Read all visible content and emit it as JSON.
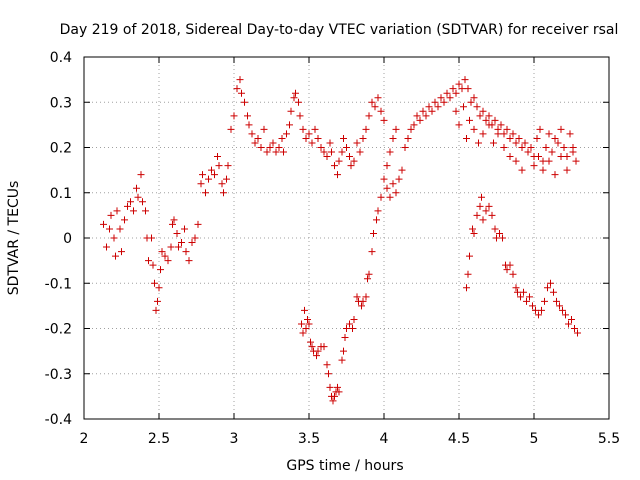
{
  "chart_data": {
    "type": "scatter",
    "title": "Day 219 of 2018, Sidereal Day-to-day VTEC variation (SDTVAR) for receiver rsal",
    "xlabel": "GPS time / hours",
    "ylabel": "SDTVAR / TECUs",
    "xlim": [
      2,
      5.5
    ],
    "ylim": [
      -0.4,
      0.4
    ],
    "xticks": [
      "2",
      "2.5",
      "3",
      "3.5",
      "4",
      "4.5",
      "5",
      "5.5"
    ],
    "yticks": [
      "0.4",
      "0.3",
      "0.2",
      "0.1",
      "0",
      "-0.1",
      "-0.2",
      "-0.3",
      "-0.4"
    ],
    "grid": true,
    "marker": "+",
    "color": "#cc0000",
    "series": [
      {
        "name": "SDTVAR",
        "points": [
          [
            2.13,
            0.03
          ],
          [
            2.15,
            -0.02
          ],
          [
            2.17,
            0.02
          ],
          [
            2.18,
            0.05
          ],
          [
            2.2,
            0.0
          ],
          [
            2.21,
            -0.04
          ],
          [
            2.22,
            0.06
          ],
          [
            2.24,
            0.02
          ],
          [
            2.25,
            -0.03
          ],
          [
            2.27,
            0.04
          ],
          [
            2.29,
            0.07
          ],
          [
            2.31,
            0.08
          ],
          [
            2.33,
            0.06
          ],
          [
            2.35,
            0.11
          ],
          [
            2.36,
            0.09
          ],
          [
            2.38,
            0.14
          ],
          [
            2.39,
            0.08
          ],
          [
            2.41,
            0.06
          ],
          [
            2.42,
            0.0
          ],
          [
            2.43,
            -0.05
          ],
          [
            2.45,
            0.0
          ],
          [
            2.46,
            -0.06
          ],
          [
            2.47,
            -0.1
          ],
          [
            2.48,
            -0.16
          ],
          [
            2.49,
            -0.14
          ],
          [
            2.5,
            -0.11
          ],
          [
            2.51,
            -0.07
          ],
          [
            2.52,
            -0.03
          ],
          [
            2.54,
            -0.04
          ],
          [
            2.56,
            -0.05
          ],
          [
            2.58,
            -0.02
          ],
          [
            2.59,
            0.03
          ],
          [
            2.6,
            0.04
          ],
          [
            2.62,
            0.01
          ],
          [
            2.63,
            -0.02
          ],
          [
            2.65,
            -0.01
          ],
          [
            2.67,
            0.02
          ],
          [
            2.68,
            -0.03
          ],
          [
            2.7,
            -0.05
          ],
          [
            2.72,
            -0.01
          ],
          [
            2.74,
            0.0
          ],
          [
            2.76,
            0.03
          ],
          [
            2.78,
            0.12
          ],
          [
            2.79,
            0.14
          ],
          [
            2.81,
            0.1
          ],
          [
            2.83,
            0.13
          ],
          [
            2.85,
            0.15
          ],
          [
            2.87,
            0.14
          ],
          [
            2.89,
            0.18
          ],
          [
            2.9,
            0.16
          ],
          [
            2.92,
            0.12
          ],
          [
            2.93,
            0.1
          ],
          [
            2.95,
            0.13
          ],
          [
            2.96,
            0.16
          ],
          [
            2.98,
            0.24
          ],
          [
            3.0,
            0.27
          ],
          [
            3.02,
            0.33
          ],
          [
            3.04,
            0.35
          ],
          [
            3.05,
            0.32
          ],
          [
            3.07,
            0.3
          ],
          [
            3.09,
            0.27
          ],
          [
            3.1,
            0.25
          ],
          [
            3.12,
            0.23
          ],
          [
            3.14,
            0.21
          ],
          [
            3.16,
            0.22
          ],
          [
            3.18,
            0.2
          ],
          [
            3.2,
            0.24
          ],
          [
            3.22,
            0.19
          ],
          [
            3.24,
            0.2
          ],
          [
            3.26,
            0.21
          ],
          [
            3.28,
            0.19
          ],
          [
            3.3,
            0.2
          ],
          [
            3.32,
            0.22
          ],
          [
            3.33,
            0.19
          ],
          [
            3.35,
            0.23
          ],
          [
            3.37,
            0.25
          ],
          [
            3.38,
            0.28
          ],
          [
            3.4,
            0.31
          ],
          [
            3.41,
            0.32
          ],
          [
            3.43,
            0.3
          ],
          [
            3.44,
            0.27
          ],
          [
            3.46,
            0.24
          ],
          [
            3.48,
            0.22
          ],
          [
            3.5,
            0.23
          ],
          [
            3.52,
            0.21
          ],
          [
            3.54,
            0.24
          ],
          [
            3.56,
            0.22
          ],
          [
            3.58,
            0.2
          ],
          [
            3.6,
            0.19
          ],
          [
            3.62,
            0.18
          ],
          [
            3.64,
            0.21
          ],
          [
            3.65,
            0.19
          ],
          [
            3.67,
            0.16
          ],
          [
            3.69,
            0.14
          ],
          [
            3.7,
            0.17
          ],
          [
            3.72,
            0.19
          ],
          [
            3.73,
            0.22
          ],
          [
            3.75,
            0.2
          ],
          [
            3.77,
            0.18
          ],
          [
            3.78,
            0.16
          ],
          [
            3.8,
            0.17
          ],
          [
            3.82,
            0.21
          ],
          [
            3.84,
            0.19
          ],
          [
            3.86,
            0.22
          ],
          [
            3.88,
            0.24
          ],
          [
            3.9,
            0.27
          ],
          [
            3.92,
            0.3
          ],
          [
            3.94,
            0.29
          ],
          [
            3.96,
            0.31
          ],
          [
            3.98,
            0.28
          ],
          [
            4.0,
            0.26
          ],
          [
            4.02,
            0.11
          ],
          [
            4.04,
            0.09
          ],
          [
            4.06,
            0.12
          ],
          [
            4.08,
            0.1
          ],
          [
            4.1,
            0.13
          ],
          [
            4.12,
            0.15
          ],
          [
            4.14,
            0.2
          ],
          [
            4.16,
            0.22
          ],
          [
            4.18,
            0.24
          ],
          [
            4.2,
            0.25
          ],
          [
            4.22,
            0.27
          ],
          [
            4.24,
            0.26
          ],
          [
            4.26,
            0.28
          ],
          [
            4.28,
            0.27
          ],
          [
            4.3,
            0.29
          ],
          [
            4.32,
            0.28
          ],
          [
            4.34,
            0.3
          ],
          [
            4.36,
            0.29
          ],
          [
            4.38,
            0.31
          ],
          [
            4.4,
            0.3
          ],
          [
            4.42,
            0.32
          ],
          [
            4.44,
            0.31
          ],
          [
            4.46,
            0.33
          ],
          [
            4.48,
            0.32
          ],
          [
            4.5,
            0.34
          ],
          [
            4.52,
            0.33
          ],
          [
            4.54,
            0.35
          ],
          [
            4.56,
            0.33
          ],
          [
            4.58,
            0.3
          ],
          [
            4.6,
            0.31
          ],
          [
            4.62,
            0.29
          ],
          [
            4.64,
            0.27
          ],
          [
            4.66,
            0.28
          ],
          [
            4.68,
            0.26
          ],
          [
            4.7,
            0.27
          ],
          [
            4.72,
            0.25
          ],
          [
            4.74,
            0.26
          ],
          [
            4.76,
            0.24
          ],
          [
            4.78,
            0.25
          ],
          [
            4.8,
            0.23
          ],
          [
            4.82,
            0.24
          ],
          [
            4.84,
            0.22
          ],
          [
            4.86,
            0.23
          ],
          [
            4.88,
            0.21
          ],
          [
            4.9,
            0.22
          ],
          [
            4.92,
            0.2
          ],
          [
            4.94,
            0.21
          ],
          [
            4.96,
            0.19
          ],
          [
            4.98,
            0.2
          ],
          [
            5.0,
            0.18
          ],
          [
            5.02,
            0.22
          ],
          [
            5.04,
            0.24
          ],
          [
            5.06,
            0.17
          ],
          [
            5.08,
            0.2
          ],
          [
            5.1,
            0.23
          ],
          [
            5.12,
            0.19
          ],
          [
            5.14,
            0.22
          ],
          [
            5.16,
            0.21
          ],
          [
            5.18,
            0.24
          ],
          [
            5.2,
            0.2
          ],
          [
            5.22,
            0.18
          ],
          [
            5.24,
            0.23
          ],
          [
            5.26,
            0.2
          ],
          [
            5.28,
            0.17
          ],
          [
            4.48,
            0.28
          ],
          [
            4.5,
            0.25
          ],
          [
            4.53,
            0.29
          ],
          [
            4.55,
            0.22
          ],
          [
            4.57,
            0.26
          ],
          [
            4.6,
            0.24
          ],
          [
            4.63,
            0.21
          ],
          [
            4.66,
            0.23
          ],
          [
            4.7,
            0.25
          ],
          [
            4.73,
            0.21
          ],
          [
            4.76,
            0.23
          ],
          [
            4.8,
            0.2
          ],
          [
            4.84,
            0.18
          ],
          [
            4.88,
            0.17
          ],
          [
            4.92,
            0.15
          ],
          [
            4.96,
            0.19
          ],
          [
            5.0,
            0.16
          ],
          [
            5.03,
            0.18
          ],
          [
            5.06,
            0.15
          ],
          [
            5.1,
            0.17
          ],
          [
            5.14,
            0.14
          ],
          [
            5.18,
            0.18
          ],
          [
            5.22,
            0.15
          ],
          [
            5.26,
            0.19
          ],
          [
            3.45,
            -0.19
          ],
          [
            3.46,
            -0.21
          ],
          [
            3.47,
            -0.16
          ],
          [
            3.48,
            -0.2
          ],
          [
            3.49,
            -0.18
          ],
          [
            3.5,
            -0.19
          ],
          [
            3.51,
            -0.23
          ],
          [
            3.52,
            -0.24
          ],
          [
            3.53,
            -0.25
          ],
          [
            3.55,
            -0.26
          ],
          [
            3.56,
            -0.25
          ],
          [
            3.58,
            -0.24
          ],
          [
            3.6,
            -0.24
          ],
          [
            3.62,
            -0.28
          ],
          [
            3.63,
            -0.3
          ],
          [
            3.64,
            -0.33
          ],
          [
            3.65,
            -0.35
          ],
          [
            3.66,
            -0.36
          ],
          [
            3.67,
            -0.35
          ],
          [
            3.68,
            -0.34
          ],
          [
            3.69,
            -0.33
          ],
          [
            3.7,
            -0.34
          ],
          [
            3.72,
            -0.27
          ],
          [
            3.73,
            -0.25
          ],
          [
            3.74,
            -0.22
          ],
          [
            3.75,
            -0.2
          ],
          [
            3.77,
            -0.19
          ],
          [
            3.79,
            -0.2
          ],
          [
            3.8,
            -0.18
          ],
          [
            3.82,
            -0.13
          ],
          [
            3.83,
            -0.14
          ],
          [
            3.85,
            -0.15
          ],
          [
            3.86,
            -0.14
          ],
          [
            3.88,
            -0.13
          ],
          [
            3.89,
            -0.09
          ],
          [
            3.9,
            -0.08
          ],
          [
            3.92,
            -0.03
          ],
          [
            3.93,
            0.01
          ],
          [
            3.95,
            0.04
          ],
          [
            3.96,
            0.06
          ],
          [
            3.98,
            0.09
          ],
          [
            4.0,
            0.13
          ],
          [
            4.02,
            0.16
          ],
          [
            4.04,
            0.19
          ],
          [
            4.06,
            0.22
          ],
          [
            4.08,
            0.24
          ],
          [
            4.55,
            -0.11
          ],
          [
            4.56,
            -0.08
          ],
          [
            4.57,
            -0.04
          ],
          [
            4.59,
            0.02
          ],
          [
            4.6,
            0.01
          ],
          [
            4.62,
            0.05
          ],
          [
            4.64,
            0.07
          ],
          [
            4.65,
            0.09
          ],
          [
            4.66,
            0.04
          ],
          [
            4.68,
            0.06
          ],
          [
            4.7,
            0.07
          ],
          [
            4.72,
            0.05
          ],
          [
            4.74,
            0.02
          ],
          [
            4.75,
            0.0
          ],
          [
            4.77,
            0.01
          ],
          [
            4.79,
            0.0
          ],
          [
            4.81,
            -0.06
          ],
          [
            4.82,
            -0.07
          ],
          [
            4.84,
            -0.06
          ],
          [
            4.86,
            -0.08
          ],
          [
            4.88,
            -0.11
          ],
          [
            4.89,
            -0.12
          ],
          [
            4.91,
            -0.13
          ],
          [
            4.93,
            -0.12
          ],
          [
            4.95,
            -0.14
          ],
          [
            4.97,
            -0.13
          ],
          [
            4.99,
            -0.15
          ],
          [
            5.01,
            -0.16
          ],
          [
            5.03,
            -0.17
          ],
          [
            5.05,
            -0.16
          ],
          [
            5.07,
            -0.14
          ],
          [
            5.09,
            -0.11
          ],
          [
            5.11,
            -0.1
          ],
          [
            5.13,
            -0.12
          ],
          [
            5.15,
            -0.14
          ],
          [
            5.17,
            -0.15
          ],
          [
            5.19,
            -0.16
          ],
          [
            5.21,
            -0.17
          ],
          [
            5.23,
            -0.19
          ],
          [
            5.25,
            -0.18
          ],
          [
            5.27,
            -0.2
          ],
          [
            5.29,
            -0.21
          ]
        ]
      }
    ]
  }
}
